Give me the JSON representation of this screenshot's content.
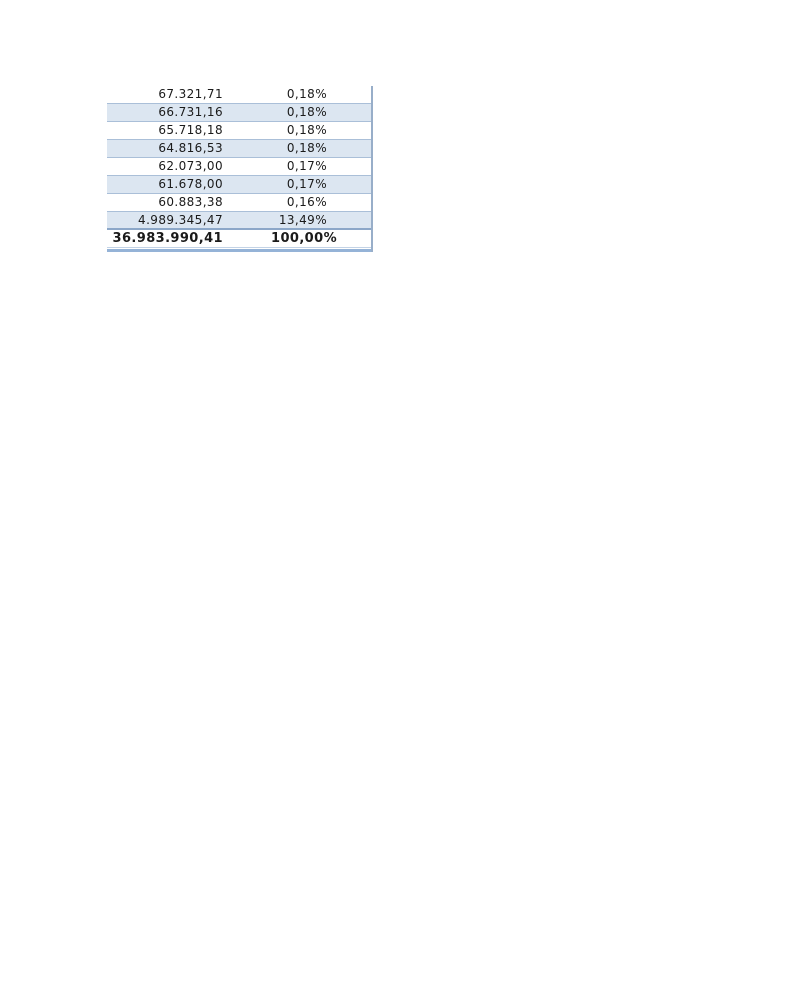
{
  "table": {
    "rows": [
      {
        "value": "67.321,71",
        "percent": "0,18%"
      },
      {
        "value": "66.731,16",
        "percent": "0,18%"
      },
      {
        "value": "65.718,18",
        "percent": "0,18%"
      },
      {
        "value": "64.816,53",
        "percent": "0,18%"
      },
      {
        "value": "62.073,00",
        "percent": "0,17%"
      },
      {
        "value": "61.678,00",
        "percent": "0,17%"
      },
      {
        "value": "60.883,38",
        "percent": "0,16%"
      },
      {
        "value": "4.989.345,47",
        "percent": "13,49%"
      }
    ],
    "total": {
      "value": "36.983.990,41",
      "percent": "100,00%"
    }
  },
  "colors": {
    "zebra_fill": "#dce6f1",
    "row_separator": "#aabfd8",
    "heavy_rule": "#8ca7c8",
    "bottom_bar": "#95b3d7",
    "right_border": "#98aec9",
    "text": "#1a1a1a"
  }
}
